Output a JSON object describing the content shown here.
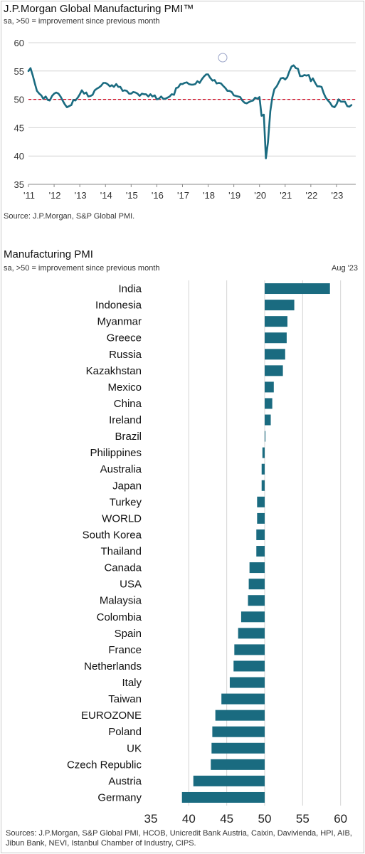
{
  "chart_data": [
    {
      "type": "line",
      "title": "J.P.Morgan Global Manufacturing PMI™",
      "subtitle": "sa, >50 = improvement since previous month",
      "source": "Source: J.P.Morgan, S&P Global PMI.",
      "ylim": [
        35,
        60
      ],
      "yticks": [
        35,
        40,
        45,
        50,
        55,
        60
      ],
      "xlim": [
        2011,
        2023.75
      ],
      "xticks": [
        {
          "year": 2011,
          "label": "'11"
        },
        {
          "year": 2012,
          "label": "'12"
        },
        {
          "year": 2013,
          "label": "'13"
        },
        {
          "year": 2014,
          "label": "'14"
        },
        {
          "year": 2015,
          "label": "'15"
        },
        {
          "year": 2016,
          "label": "'16"
        },
        {
          "year": 2017,
          "label": "'17"
        },
        {
          "year": 2018,
          "label": "'18"
        },
        {
          "year": 2019,
          "label": "'19"
        },
        {
          "year": 2020,
          "label": "'20"
        },
        {
          "year": 2021,
          "label": "'21"
        },
        {
          "year": 2022,
          "label": "'22"
        },
        {
          "year": 2023,
          "label": "'23"
        }
      ],
      "reference_line": 50,
      "reference_color": "#d0021b",
      "line_color": "#1a6b80",
      "grid": "horizontal",
      "x": [
        2011.0,
        2011.08,
        2011.17,
        2011.25,
        2011.33,
        2011.42,
        2011.5,
        2011.58,
        2011.67,
        2011.75,
        2011.83,
        2011.92,
        2012.0,
        2012.08,
        2012.17,
        2012.25,
        2012.33,
        2012.42,
        2012.5,
        2012.58,
        2012.67,
        2012.75,
        2012.83,
        2012.92,
        2013.0,
        2013.08,
        2013.17,
        2013.25,
        2013.33,
        2013.42,
        2013.5,
        2013.58,
        2013.67,
        2013.75,
        2013.83,
        2013.92,
        2014.0,
        2014.08,
        2014.17,
        2014.25,
        2014.33,
        2014.42,
        2014.5,
        2014.58,
        2014.67,
        2014.75,
        2014.83,
        2014.92,
        2015.0,
        2015.08,
        2015.17,
        2015.25,
        2015.33,
        2015.42,
        2015.5,
        2015.58,
        2015.67,
        2015.75,
        2015.83,
        2015.92,
        2016.0,
        2016.08,
        2016.17,
        2016.25,
        2016.33,
        2016.42,
        2016.5,
        2016.58,
        2016.67,
        2016.75,
        2016.83,
        2016.92,
        2017.0,
        2017.08,
        2017.17,
        2017.25,
        2017.33,
        2017.42,
        2017.5,
        2017.58,
        2017.67,
        2017.75,
        2017.83,
        2017.92,
        2018.0,
        2018.08,
        2018.17,
        2018.25,
        2018.33,
        2018.42,
        2018.5,
        2018.58,
        2018.67,
        2018.75,
        2018.83,
        2018.92,
        2019.0,
        2019.08,
        2019.17,
        2019.25,
        2019.33,
        2019.42,
        2019.5,
        2019.58,
        2019.67,
        2019.75,
        2019.83,
        2019.92,
        2020.0,
        2020.08,
        2020.17,
        2020.25,
        2020.33,
        2020.42,
        2020.5,
        2020.58,
        2020.67,
        2020.75,
        2020.83,
        2020.92,
        2021.0,
        2021.08,
        2021.17,
        2021.25,
        2021.33,
        2021.42,
        2021.5,
        2021.58,
        2021.67,
        2021.75,
        2021.83,
        2021.92,
        2022.0,
        2022.08,
        2022.17,
        2022.25,
        2022.33,
        2022.42,
        2022.5,
        2022.58,
        2022.67,
        2022.75,
        2022.83,
        2022.92,
        2023.0,
        2023.08,
        2023.17,
        2023.25,
        2023.33,
        2023.42,
        2023.5,
        2023.58
      ],
      "y": [
        55.0,
        55.5,
        54.2,
        52.8,
        51.5,
        51.0,
        50.7,
        50.1,
        50.5,
        49.9,
        49.8,
        50.6,
        51.0,
        51.2,
        51.0,
        50.5,
        49.8,
        49.1,
        48.6,
        48.8,
        49.0,
        49.9,
        49.8,
        50.3,
        50.9,
        51.6,
        51.0,
        51.2,
        50.5,
        50.6,
        50.8,
        51.6,
        51.9,
        52.1,
        52.4,
        52.9,
        52.9,
        52.7,
        52.3,
        52.5,
        52.2,
        52.7,
        52.2,
        52.2,
        51.5,
        51.6,
        51.5,
        51.0,
        51.0,
        51.3,
        51.2,
        51.0,
        50.6,
        51.0,
        50.9,
        50.9,
        50.5,
        50.9,
        50.5,
        50.7,
        50.0,
        50.1,
        50.5,
        50.1,
        50.1,
        50.3,
        50.5,
        50.9,
        50.8,
        52.0,
        52.1,
        52.7,
        52.7,
        52.9,
        53.0,
        52.7,
        52.6,
        52.6,
        52.7,
        53.2,
        52.9,
        53.5,
        54.0,
        54.4,
        54.4,
        53.8,
        53.3,
        53.4,
        52.8,
        52.9,
        52.8,
        52.4,
        52.0,
        51.5,
        51.5,
        51.3,
        50.7,
        50.6,
        50.5,
        50.4,
        49.8,
        49.4,
        49.3,
        49.5,
        49.7,
        49.8,
        50.3,
        50.1,
        50.4,
        47.1,
        47.3,
        39.6,
        42.4,
        47.9,
        50.3,
        51.8,
        52.3,
        53.0,
        53.7,
        53.8,
        53.5,
        53.9,
        55.0,
        55.8,
        56.0,
        55.5,
        55.4,
        54.1,
        54.1,
        54.3,
        54.2,
        54.3,
        53.2,
        53.7,
        52.9,
        52.3,
        52.3,
        52.2,
        51.1,
        50.3,
        49.8,
        49.4,
        48.8,
        48.6,
        49.1,
        50.0,
        49.6,
        49.6,
        49.6,
        48.8,
        48.7,
        49.0
      ]
    },
    {
      "type": "bar",
      "orientation": "horizontal",
      "title": "Manufacturing PMI",
      "subtitle": "sa, >50 = improvement since previous month",
      "period": "Aug '23",
      "source": "Sources: J.P.Morgan, S&P Global PMI, HCOB, Unicredit Bank Austria, Caixin, Davivienda, HPI, AIB, Jibun Bank, NEVI, Istanbul Chamber of Industry, CIPS.",
      "baseline": 50,
      "xlim": [
        35,
        62
      ],
      "xticks": [
        35,
        40,
        45,
        50,
        55,
        60
      ],
      "bar_color": "#1a6b80",
      "categories": [
        "India",
        "Indonesia",
        "Myanmar",
        "Greece",
        "Russia",
        "Kazakhstan",
        "Mexico",
        "China",
        "Ireland",
        "Brazil",
        "Philippines",
        "Australia",
        "Japan",
        "Turkey",
        "WORLD",
        "South Korea",
        "Thailand",
        "Canada",
        "USA",
        "Malaysia",
        "Colombia",
        "Spain",
        "France",
        "Netherlands",
        "Italy",
        "Taiwan",
        "EUROZONE",
        "Poland",
        "UK",
        "Czech Republic",
        "Austria",
        "Germany"
      ],
      "values": [
        58.6,
        53.9,
        53.0,
        52.9,
        52.7,
        52.4,
        51.2,
        51.0,
        50.8,
        50.1,
        49.7,
        49.6,
        49.6,
        49.0,
        49.0,
        48.9,
        48.9,
        48.0,
        47.9,
        47.8,
        46.9,
        46.5,
        46.0,
        45.9,
        45.4,
        44.3,
        43.5,
        43.1,
        43.0,
        42.9,
        40.6,
        39.1
      ]
    }
  ]
}
